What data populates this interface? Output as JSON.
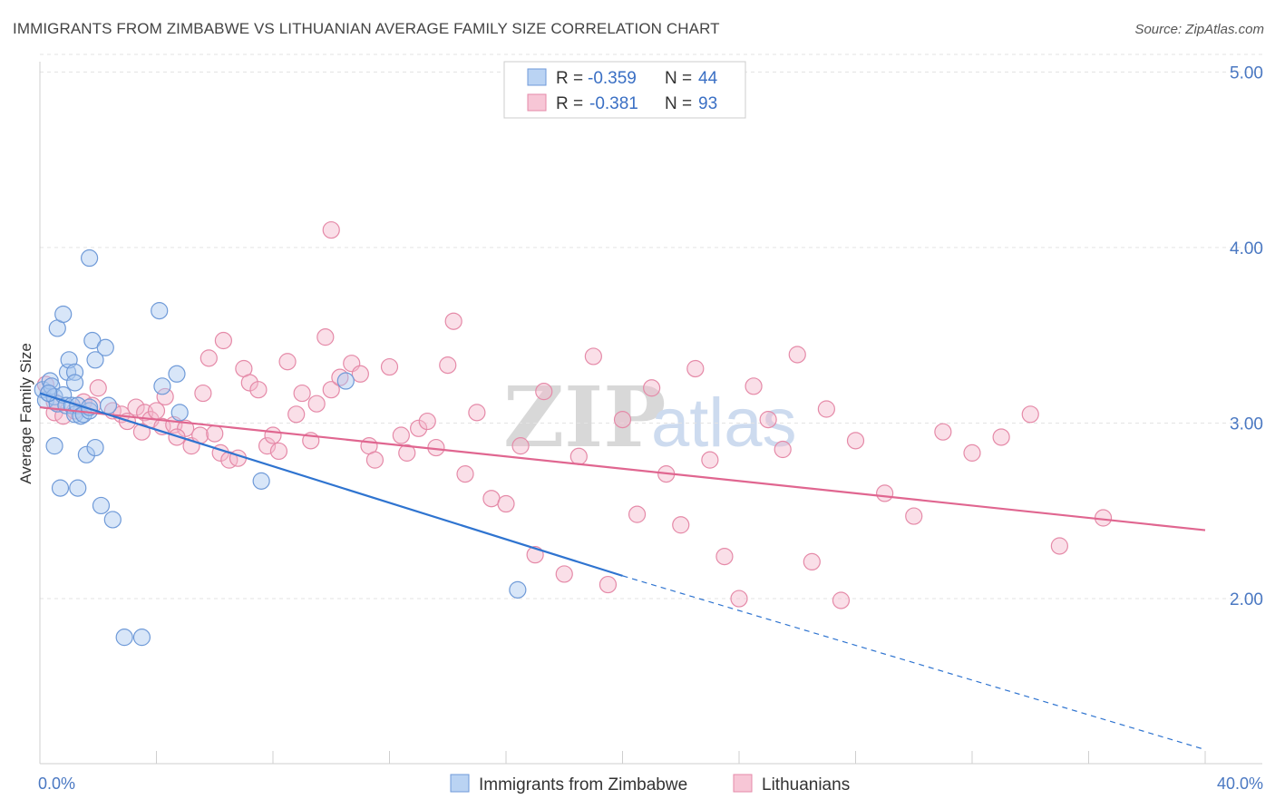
{
  "title": "IMMIGRANTS FROM ZIMBABWE VS LITHUANIAN AVERAGE FAMILY SIZE CORRELATION CHART",
  "source": "Source: ZipAtlas.com",
  "watermark": {
    "zip": "ZIP",
    "atlas": "atlas"
  },
  "legend": {
    "rows": [
      {
        "r_label": "R =",
        "r_value": "-0.359",
        "n_label": "N =",
        "n_value": "44",
        "color": "#a9c8f0",
        "stroke": "#6f9ad8"
      },
      {
        "r_label": "R =",
        "r_value": "-0.381",
        "n_label": "N =",
        "n_value": "93",
        "color": "#f5b8cc",
        "stroke": "#e58aa8"
      }
    ]
  },
  "chart_data": {
    "type": "scatter",
    "title": "IMMIGRANTS FROM ZIMBABWE VS LITHUANIAN AVERAGE FAMILY SIZE CORRELATION CHART",
    "xlabel": "",
    "ylabel": "Average Family Size",
    "xlim": [
      0,
      40
    ],
    "ylim": [
      1.06,
      5.1
    ],
    "x_tick_labels": [
      "0.0%",
      "40.0%"
    ],
    "y_ticks": [
      2.0,
      3.0,
      4.0,
      5.0
    ],
    "y_tick_labels": [
      "2.00",
      "3.00",
      "4.00",
      "5.00"
    ],
    "grid": true,
    "legend_position": "top-center",
    "series": [
      {
        "name": "Immigrants from Zimbabwe",
        "color": "#a9c8f0",
        "stroke": "#6f9ad8",
        "line_color": "#2f74d0",
        "trend": {
          "x0": 0.0,
          "y0": 3.17,
          "x1": 20.0,
          "y1": 2.13,
          "dash_to_x": 40.0,
          "dash_to_y": 1.14
        },
        "points": [
          [
            0.1,
            3.19
          ],
          [
            0.2,
            3.13
          ],
          [
            0.3,
            3.17
          ],
          [
            0.35,
            3.24
          ],
          [
            0.4,
            3.21
          ],
          [
            0.5,
            3.15
          ],
          [
            0.5,
            2.87
          ],
          [
            0.6,
            3.11
          ],
          [
            0.6,
            3.54
          ],
          [
            0.7,
            2.63
          ],
          [
            0.8,
            3.62
          ],
          [
            0.8,
            3.16
          ],
          [
            0.9,
            3.1
          ],
          [
            0.95,
            3.29
          ],
          [
            1.0,
            3.36
          ],
          [
            1.1,
            3.1
          ],
          [
            1.2,
            3.05
          ],
          [
            1.2,
            3.29
          ],
          [
            1.2,
            3.23
          ],
          [
            1.3,
            3.1
          ],
          [
            1.3,
            2.63
          ],
          [
            1.4,
            3.04
          ],
          [
            1.5,
            3.05
          ],
          [
            1.6,
            2.82
          ],
          [
            1.7,
            3.07
          ],
          [
            1.7,
            3.94
          ],
          [
            1.7,
            3.09
          ],
          [
            1.8,
            3.47
          ],
          [
            1.9,
            2.86
          ],
          [
            1.9,
            3.36
          ],
          [
            2.1,
            2.53
          ],
          [
            2.25,
            3.43
          ],
          [
            2.35,
            3.1
          ],
          [
            2.5,
            2.45
          ],
          [
            2.9,
            1.78
          ],
          [
            3.5,
            1.78
          ],
          [
            4.1,
            3.64
          ],
          [
            4.2,
            3.21
          ],
          [
            4.7,
            3.28
          ],
          [
            4.8,
            3.06
          ],
          [
            7.6,
            2.67
          ],
          [
            10.5,
            3.24
          ],
          [
            16.4,
            2.05
          ],
          [
            0.3,
            3.17
          ]
        ]
      },
      {
        "name": "Lithuanians",
        "color": "#f5b8cc",
        "stroke": "#e58aa8",
        "line_color": "#e06690",
        "trend": {
          "x0": 0.0,
          "y0": 3.09,
          "x1": 40.0,
          "y1": 2.39
        },
        "points": [
          [
            0.2,
            3.22
          ],
          [
            0.5,
            3.06
          ],
          [
            0.5,
            3.12
          ],
          [
            0.8,
            3.04
          ],
          [
            1.2,
            3.07
          ],
          [
            1.5,
            3.12
          ],
          [
            1.8,
            3.1
          ],
          [
            2.0,
            3.2
          ],
          [
            2.5,
            3.07
          ],
          [
            2.8,
            3.05
          ],
          [
            3.0,
            3.01
          ],
          [
            3.3,
            3.09
          ],
          [
            3.6,
            3.06
          ],
          [
            3.8,
            3.02
          ],
          [
            4.2,
            2.98
          ],
          [
            4.6,
            2.99
          ],
          [
            5.0,
            2.97
          ],
          [
            3.5,
            2.95
          ],
          [
            4.0,
            3.07
          ],
          [
            4.3,
            3.15
          ],
          [
            4.7,
            2.92
          ],
          [
            5.2,
            2.87
          ],
          [
            5.5,
            2.93
          ],
          [
            5.6,
            3.17
          ],
          [
            6.0,
            2.94
          ],
          [
            6.2,
            2.83
          ],
          [
            6.5,
            2.79
          ],
          [
            6.8,
            2.8
          ],
          [
            5.8,
            3.37
          ],
          [
            6.3,
            3.47
          ],
          [
            7.0,
            3.31
          ],
          [
            7.2,
            3.23
          ],
          [
            7.5,
            3.19
          ],
          [
            7.8,
            2.87
          ],
          [
            8.0,
            2.93
          ],
          [
            8.2,
            2.84
          ],
          [
            8.5,
            3.35
          ],
          [
            8.8,
            3.05
          ],
          [
            9.0,
            3.17
          ],
          [
            9.3,
            2.9
          ],
          [
            9.5,
            3.11
          ],
          [
            9.8,
            3.49
          ],
          [
            10.0,
            3.19
          ],
          [
            10.3,
            3.26
          ],
          [
            10.7,
            3.34
          ],
          [
            11.0,
            3.28
          ],
          [
            11.3,
            2.87
          ],
          [
            11.5,
            2.79
          ],
          [
            10.0,
            4.1
          ],
          [
            12.0,
            3.32
          ],
          [
            12.4,
            2.93
          ],
          [
            12.6,
            2.83
          ],
          [
            13.0,
            2.97
          ],
          [
            13.3,
            3.01
          ],
          [
            13.6,
            2.86
          ],
          [
            14.0,
            3.33
          ],
          [
            14.2,
            3.58
          ],
          [
            14.6,
            2.71
          ],
          [
            15.0,
            3.06
          ],
          [
            15.5,
            2.57
          ],
          [
            16.0,
            2.54
          ],
          [
            16.5,
            2.87
          ],
          [
            17.0,
            2.25
          ],
          [
            17.3,
            3.18
          ],
          [
            18.0,
            2.14
          ],
          [
            18.5,
            2.81
          ],
          [
            19.0,
            3.38
          ],
          [
            19.5,
            2.08
          ],
          [
            20.0,
            3.02
          ],
          [
            20.5,
            2.48
          ],
          [
            21.0,
            3.2
          ],
          [
            21.5,
            2.71
          ],
          [
            22.0,
            2.42
          ],
          [
            22.5,
            3.31
          ],
          [
            23.0,
            2.79
          ],
          [
            23.5,
            2.24
          ],
          [
            24.0,
            2.0
          ],
          [
            24.5,
            3.21
          ],
          [
            25.0,
            3.02
          ],
          [
            25.5,
            2.85
          ],
          [
            26.0,
            3.39
          ],
          [
            26.5,
            2.21
          ],
          [
            27.0,
            3.08
          ],
          [
            27.5,
            1.99
          ],
          [
            28.0,
            2.9
          ],
          [
            29.0,
            2.6
          ],
          [
            30.0,
            2.47
          ],
          [
            31.0,
            2.95
          ],
          [
            32.0,
            2.83
          ],
          [
            33.0,
            2.92
          ],
          [
            34.0,
            3.05
          ],
          [
            35.0,
            2.3
          ],
          [
            36.5,
            2.46
          ]
        ]
      }
    ]
  }
}
